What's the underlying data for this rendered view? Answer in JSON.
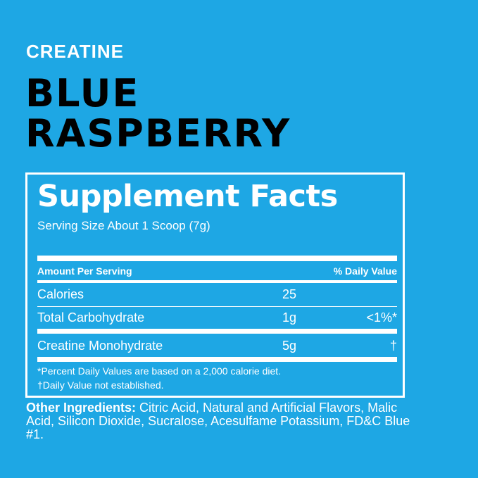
{
  "category": "CREATINE",
  "flavor_lines": [
    "BLUE",
    "RASPBERRY"
  ],
  "facts": {
    "title": "Supplement Facts",
    "serving_size": "Serving Size About 1 Scoop (7g)",
    "header_amount": "Amount Per Serving",
    "header_dv": "% Daily Value",
    "rows": [
      {
        "name": "Calories",
        "amount": "25",
        "dv": ""
      },
      {
        "name": "Total Carbohydrate",
        "amount": "1g",
        "dv": "<1%*"
      },
      {
        "name": "Creatine Monohydrate",
        "amount": "5g",
        "dv": "†"
      }
    ],
    "footnotes": [
      "*Percent Daily Values are based on a 2,000 calorie diet.",
      "†Daily Value not established."
    ]
  },
  "other_ingredients": {
    "label": "Other Ingredients:",
    "text": " Citric Acid, Natural and Artificial Flavors, Malic Acid, Silicon Dioxide, Sucralose, Acesulfame Potassium, FD&C Blue #1."
  },
  "colors": {
    "background": "#1ea7e4",
    "text": "#ffffff",
    "flavor_text": "#000000"
  }
}
